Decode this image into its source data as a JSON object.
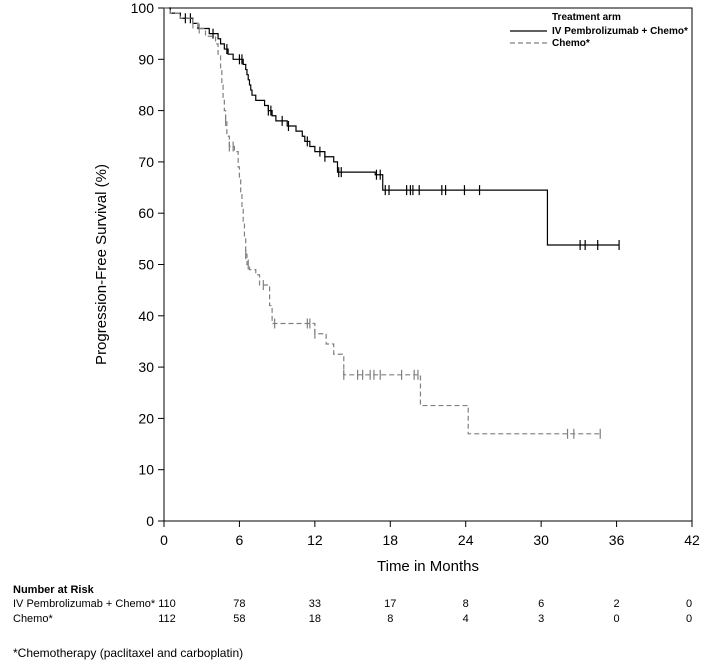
{
  "chart_data": {
    "type": "line",
    "subtype": "kaplan-meier",
    "xlabel": "Time in Months",
    "ylabel": "Progression-Free Survival (%)",
    "xlim": [
      0,
      42
    ],
    "ylim": [
      0,
      100
    ],
    "x_ticks": [
      0,
      6,
      12,
      18,
      24,
      30,
      36,
      42
    ],
    "y_ticks": [
      0,
      10,
      20,
      30,
      40,
      50,
      60,
      70,
      80,
      90,
      100
    ],
    "legend": {
      "title": "Treatment arm",
      "placement": "top-right",
      "entries": [
        "IV Pembrolizumab + Chemo*",
        "Chemo*"
      ]
    },
    "series": [
      {
        "name": "IV Pembrolizumab + Chemo*",
        "style": "solid",
        "color": "#000000",
        "steps": [
          [
            0,
            100
          ],
          [
            0.5,
            99
          ],
          [
            1.3,
            98
          ],
          [
            2.3,
            97
          ],
          [
            2.7,
            96
          ],
          [
            3.6,
            95
          ],
          [
            4.3,
            94
          ],
          [
            4.5,
            93
          ],
          [
            4.8,
            92
          ],
          [
            5.1,
            91
          ],
          [
            5.5,
            90
          ],
          [
            6.3,
            89
          ],
          [
            6.5,
            88
          ],
          [
            6.6,
            87
          ],
          [
            6.7,
            86
          ],
          [
            6.8,
            85
          ],
          [
            6.9,
            84
          ],
          [
            7.0,
            83
          ],
          [
            7.3,
            82
          ],
          [
            8.0,
            81
          ],
          [
            8.3,
            80
          ],
          [
            8.6,
            79
          ],
          [
            8.9,
            78
          ],
          [
            9.8,
            77
          ],
          [
            10.5,
            76
          ],
          [
            11.0,
            75
          ],
          [
            11.2,
            74
          ],
          [
            11.6,
            73
          ],
          [
            12.0,
            72
          ],
          [
            12.8,
            71
          ],
          [
            13.5,
            70
          ],
          [
            13.8,
            68
          ],
          [
            16.8,
            67.5
          ],
          [
            17.4,
            64.5
          ],
          [
            30.5,
            53.8
          ],
          [
            36.2,
            53.8
          ]
        ],
        "censor_times": [
          1.7,
          2.1,
          3.9,
          5.0,
          6.0,
          6.2,
          8.3,
          8.5,
          9.4,
          9.9,
          11.4,
          12.4,
          12.8,
          13.9,
          14.1,
          16.9,
          17.2,
          17.6,
          17.9,
          19.3,
          19.6,
          19.8,
          20.3,
          22.1,
          22.4,
          23.9,
          25.1,
          33.1,
          33.5,
          34.5,
          36.2
        ]
      },
      {
        "name": "Chemo*",
        "style": "dashed",
        "color": "#808080",
        "steps": [
          [
            0,
            100
          ],
          [
            0.5,
            99
          ],
          [
            1.3,
            98
          ],
          [
            2.3,
            97
          ],
          [
            2.7,
            96
          ],
          [
            3.3,
            94.5
          ],
          [
            4.1,
            93
          ],
          [
            4.3,
            91
          ],
          [
            4.5,
            88
          ],
          [
            4.6,
            85
          ],
          [
            4.7,
            82
          ],
          [
            4.8,
            80
          ],
          [
            4.9,
            78
          ],
          [
            5.0,
            75
          ],
          [
            5.2,
            73
          ],
          [
            5.6,
            72
          ],
          [
            5.9,
            69
          ],
          [
            6.0,
            67
          ],
          [
            6.1,
            64
          ],
          [
            6.2,
            61
          ],
          [
            6.3,
            58
          ],
          [
            6.4,
            55
          ],
          [
            6.5,
            52
          ],
          [
            6.6,
            50
          ],
          [
            6.8,
            49
          ],
          [
            7.3,
            48
          ],
          [
            7.6,
            46
          ],
          [
            8.4,
            42
          ],
          [
            8.6,
            38.5
          ],
          [
            12.0,
            36.5
          ],
          [
            12.9,
            34.5
          ],
          [
            13.5,
            32.5
          ],
          [
            14.3,
            28.5
          ],
          [
            20.4,
            22.5
          ],
          [
            24.2,
            17
          ],
          [
            34.7,
            17
          ]
        ],
        "censor_times": [
          2.3,
          2.8,
          4.9,
          5.2,
          5.5,
          6.5,
          6.7,
          7.9,
          8.8,
          11.4,
          11.6,
          12.0,
          14.3,
          15.4,
          15.8,
          16.4,
          16.7,
          17.2,
          18.9,
          19.9,
          20.2,
          32.1,
          32.6,
          34.7
        ]
      }
    ],
    "risk_table": {
      "title": "Number at Risk",
      "times": [
        0,
        6,
        12,
        18,
        24,
        30,
        36,
        42
      ],
      "rows": [
        {
          "label": "IV Pembrolizumab + Chemo*",
          "counts": [
            "110",
            "78",
            "33",
            "17",
            "8",
            "6",
            "2",
            "0"
          ]
        },
        {
          "label": "Chemo*",
          "counts": [
            "112",
            "58",
            "18",
            "8",
            "4",
            "3",
            "0",
            "0"
          ]
        }
      ]
    },
    "footnote": "*Chemotherapy (paclitaxel and carboplatin)"
  }
}
